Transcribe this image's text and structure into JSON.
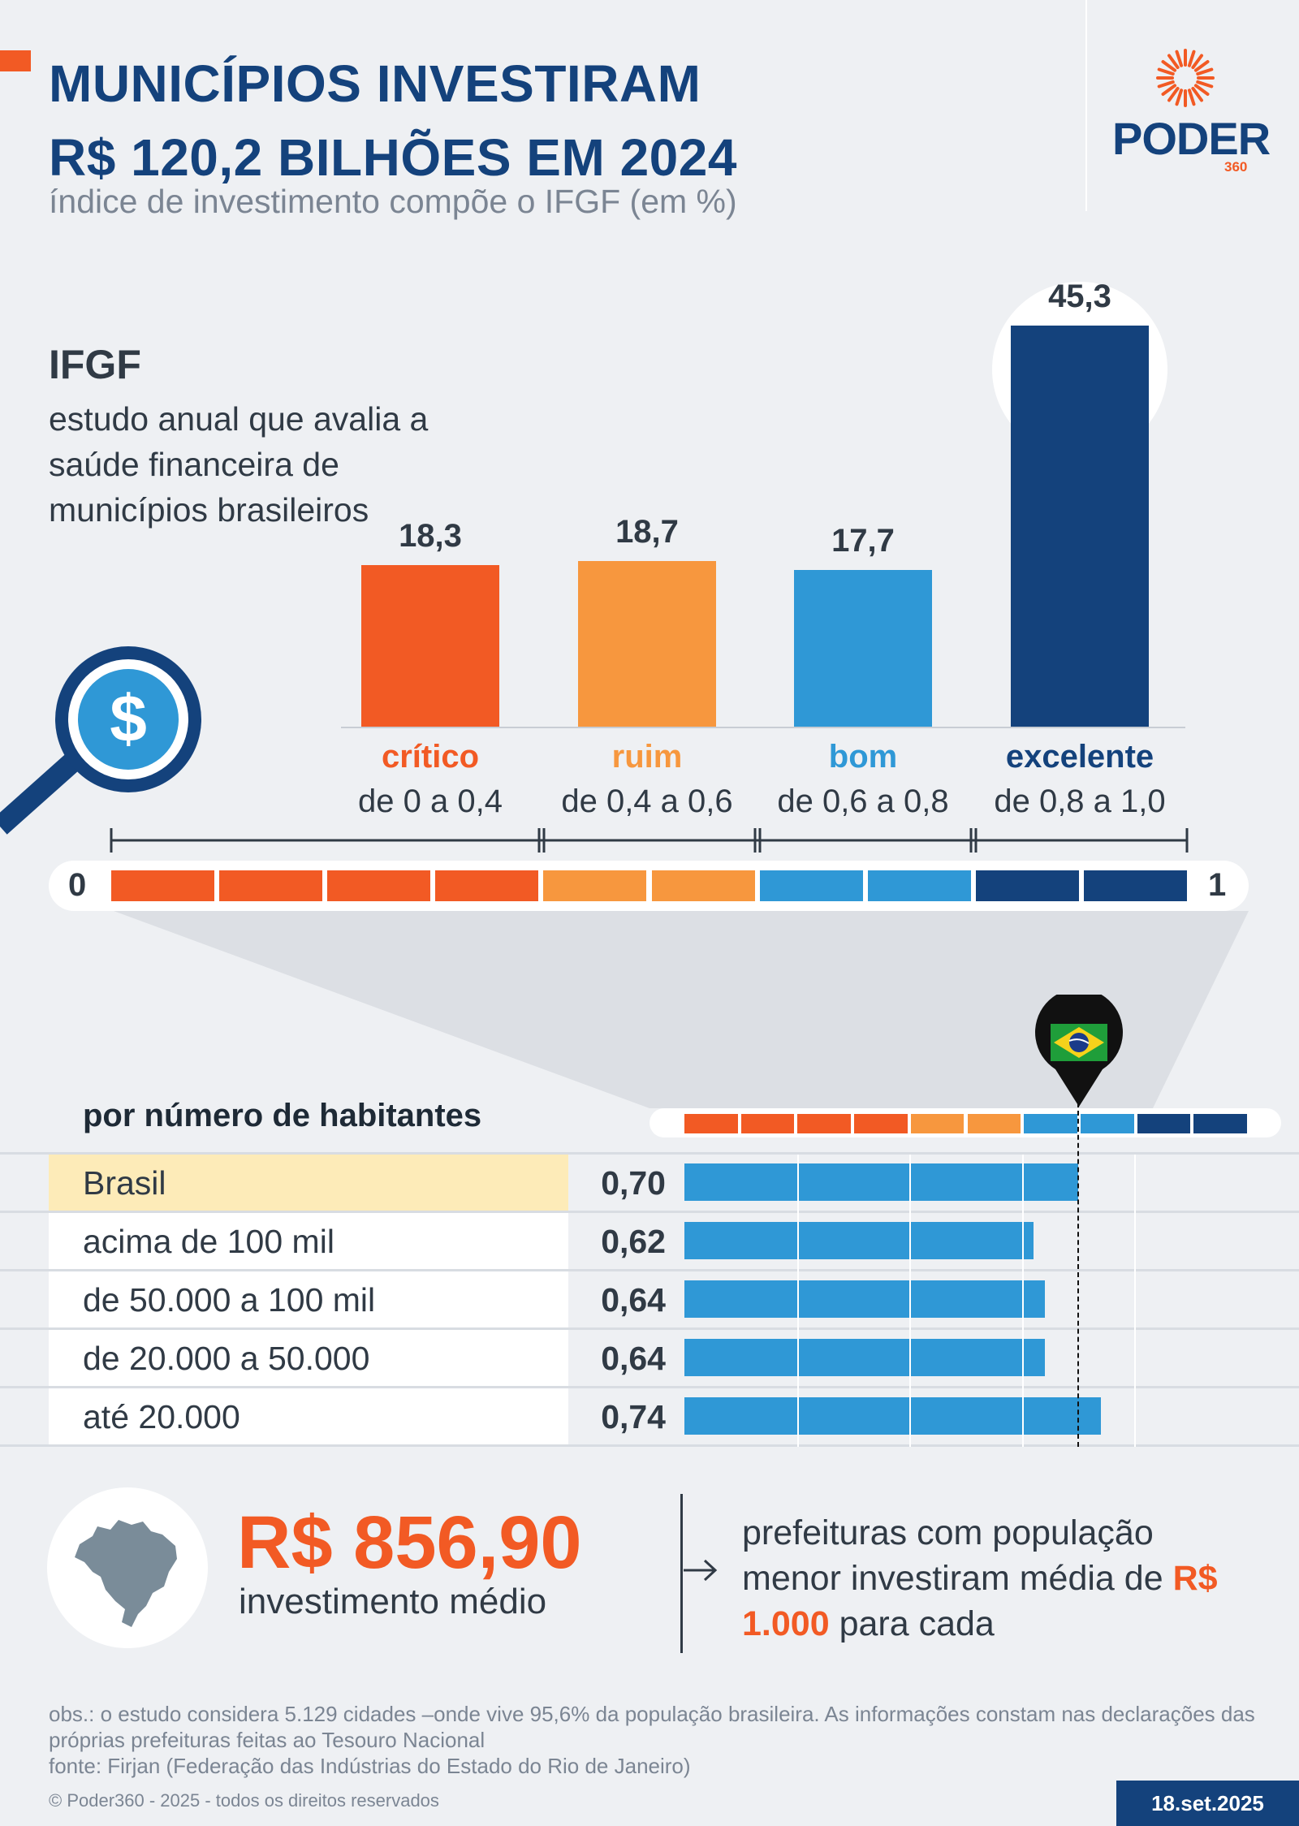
{
  "header": {
    "title_line1": "MUNICÍPIOS INVESTIRAM",
    "title_line2": "R$ 120,2 BILHÕES EM 2024",
    "subtitle": "índice de investimento compõe o IFGF (em %)",
    "logo": "PODER",
    "logo_sub": "360"
  },
  "ifgf": {
    "title": "IFGF",
    "description": "estudo anual que avalia a saúde financeira de municípios brasileiros"
  },
  "chart_data": [
    {
      "type": "bar",
      "categories": [
        "crítico",
        "ruim",
        "bom",
        "excelente"
      ],
      "ranges": [
        "de 0 a 0,4",
        "de 0,4 a 0,6",
        "de 0,6 a 0,8",
        "de 0,8 a 1,0"
      ],
      "values": [
        18.3,
        18.7,
        17.7,
        45.3
      ],
      "value_labels": [
        "18,3",
        "18,7",
        "17,7",
        "45,3"
      ],
      "colors": [
        "#f25a24",
        "#f7973e",
        "#2f98d6",
        "#14427c"
      ],
      "title": "índice de investimento compõe o IFGF (em %)",
      "scale_min_label": "0",
      "scale_max_label": "1",
      "scale_segment_colors": [
        "#f25a24",
        "#f25a24",
        "#f25a24",
        "#f25a24",
        "#f7973e",
        "#f7973e",
        "#2f98d6",
        "#2f98d6",
        "#14427c",
        "#14427c"
      ]
    },
    {
      "type": "bar",
      "orientation": "horizontal",
      "title": "por número de habitantes",
      "categories": [
        "Brasil",
        "acima de 100 mil",
        "de 50.000 a 100 mil",
        "de 20.000 a 50.000",
        "até 20.000"
      ],
      "values": [
        0.7,
        0.62,
        0.64,
        0.64,
        0.74
      ],
      "value_labels": [
        "0,70",
        "0,62",
        "0,64",
        "0,64",
        "0,74"
      ],
      "xlim": [
        0,
        1
      ],
      "highlight": "Brasil",
      "marker": "Brasil",
      "marker_value": 0.7
    }
  ],
  "summary": {
    "amount": "R$ 856,90",
    "amount_label": "investimento médio",
    "note_pre": "prefeituras com população menor investiram média de",
    "note_highlight": "R$ 1.000",
    "note_post": "para cada"
  },
  "footer": {
    "obs": "obs.: o estudo considera 5.129 cidades –onde vive 95,6% da população brasileira. As informações constam nas declarações das próprias prefeituras feitas ao Tesouro Nacional",
    "source": "fonte: Firjan (Federação das Indústrias do Estado do Rio de Janeiro)",
    "copyright": "© Poder360 - 2025 - todos os direitos reservados",
    "date": "18.set.2025"
  },
  "colors": {
    "navy": "#14427c",
    "orange": "#f25a24",
    "light_orange": "#f7973e",
    "blue": "#2f98d6",
    "highlight_row": "#fdebb8"
  }
}
